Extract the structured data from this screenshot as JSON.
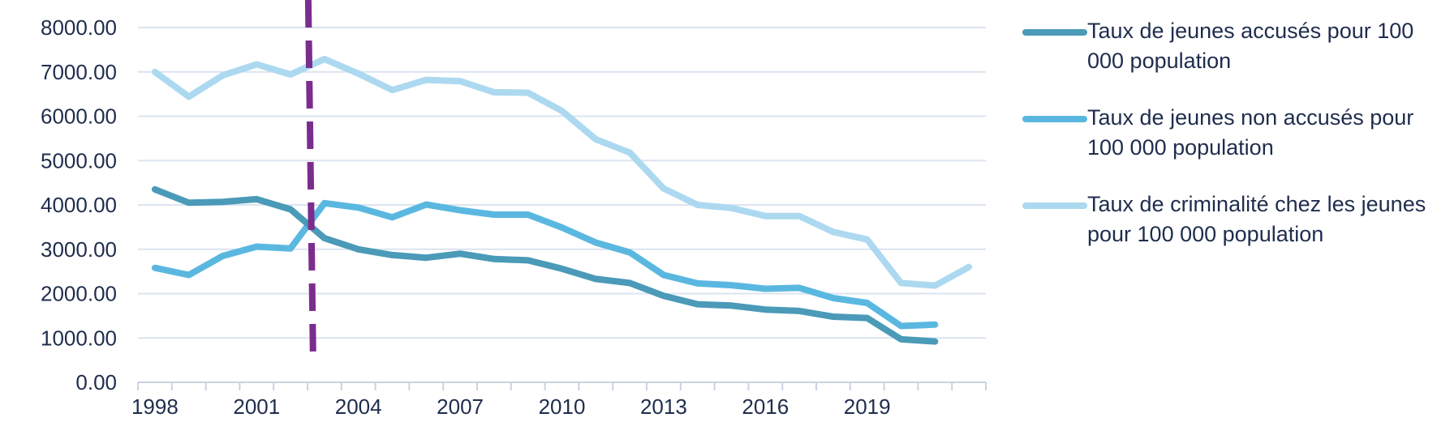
{
  "chart_data": {
    "type": "line",
    "title": "",
    "xlabel": "",
    "ylabel": "",
    "ylim": [
      0,
      8000
    ],
    "yticks": [
      "0.00",
      "1000.00",
      "2000.00",
      "3000.00",
      "4000.00",
      "5000.00",
      "6000.00",
      "7000.00",
      "8000.00"
    ],
    "xticks": [
      "1998",
      "2001",
      "2004",
      "2007",
      "2010",
      "2013",
      "2016",
      "2019"
    ],
    "x": [
      1998,
      1999,
      2000,
      2001,
      2002,
      2003,
      2004,
      2005,
      2006,
      2007,
      2008,
      2009,
      2010,
      2011,
      2012,
      2013,
      2014,
      2015,
      2016,
      2017,
      2018,
      2019,
      2020,
      2021,
      2022
    ],
    "grid": true,
    "legend_position": "right",
    "vertical_marker": {
      "x": 2003,
      "style": "dashed",
      "color": "#7b2d8e"
    },
    "series": [
      {
        "name": "Taux de jeunes accusés pour 100 000 population",
        "color": "#4a9ab8",
        "values": [
          4350,
          4050,
          4070,
          4130,
          3900,
          3250,
          3000,
          2870,
          2810,
          2900,
          2780,
          2750,
          2560,
          2330,
          2240,
          1950,
          1760,
          1730,
          1640,
          1610,
          1480,
          1450,
          970,
          920,
          null
        ]
      },
      {
        "name": "Taux de jeunes non accusés pour 100 000 population",
        "color": "#5ab8e0",
        "values": [
          2580,
          2420,
          2850,
          3060,
          3020,
          4040,
          3940,
          3720,
          4010,
          3880,
          3780,
          3780,
          3490,
          3150,
          2930,
          2420,
          2230,
          2190,
          2110,
          2130,
          1900,
          1790,
          1270,
          1300,
          null
        ]
      },
      {
        "name": "Taux de criminalité chez les jeunes pour 100 000 population",
        "color": "#acd9f0",
        "values": [
          7000,
          6440,
          6920,
          7170,
          6940,
          7290,
          6960,
          6590,
          6820,
          6790,
          6540,
          6530,
          6120,
          5480,
          5180,
          4370,
          4000,
          3930,
          3750,
          3750,
          3390,
          3220,
          2240,
          2180,
          2600
        ]
      }
    ]
  }
}
